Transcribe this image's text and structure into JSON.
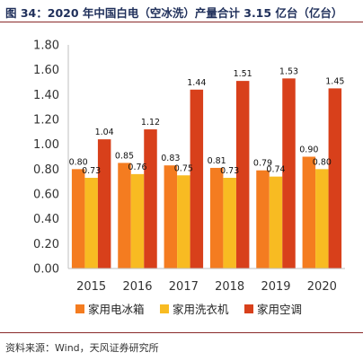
{
  "title": "图 34：2020 年中国白电（空冰洗）产量合计 3.15 亿台（亿台）",
  "source": "资料来源：Wind，天风证券研究所",
  "chart_data": {
    "type": "bar",
    "categories": [
      "2015",
      "2016",
      "2017",
      "2018",
      "2019",
      "2020"
    ],
    "series": [
      {
        "name": "家用电冰箱",
        "color": "#f47c20",
        "values": [
          0.8,
          0.85,
          0.83,
          0.81,
          0.79,
          0.9
        ],
        "labels": [
          "0.80",
          "0.85",
          "0.83",
          "0.81",
          "0.79",
          "0.90"
        ]
      },
      {
        "name": "家用洗衣机",
        "color": "#f8bb22",
        "values": [
          0.73,
          0.76,
          0.75,
          0.73,
          0.74,
          0.8
        ],
        "labels": [
          "0.73",
          "0.76",
          "0.75",
          "0.73",
          "0.74",
          "0.80"
        ]
      },
      {
        "name": "家用空调",
        "color": "#d8401b",
        "values": [
          1.04,
          1.12,
          1.44,
          1.51,
          1.53,
          1.45
        ],
        "labels": [
          "1.04",
          "1.12",
          "1.44",
          "1.51",
          "1.53",
          "1.45"
        ]
      }
    ],
    "ylim": [
      0,
      1.8
    ],
    "yticks": [
      "0.00",
      "0.20",
      "0.40",
      "0.60",
      "0.80",
      "1.00",
      "1.20",
      "1.40",
      "1.60",
      "1.80"
    ],
    "grid": false,
    "legend": "bottom"
  }
}
